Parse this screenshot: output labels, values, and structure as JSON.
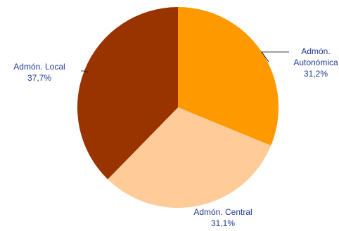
{
  "chart_data": {
    "type": "pie",
    "slices": [
      {
        "label_lines": [
          "Admón.",
          "Autonómica"
        ],
        "value": 31.2,
        "value_label": "31,2%",
        "color": "#FF9900"
      },
      {
        "label_lines": [
          "Admón. Central"
        ],
        "value": 31.1,
        "value_label": "31,1%",
        "color": "#FFCC99"
      },
      {
        "label_lines": [
          "Admón. Local"
        ],
        "value": 37.7,
        "value_label": "37,7%",
        "color": "#993300"
      }
    ],
    "start_angle_deg": 0,
    "direction": "clockwise",
    "label_color": "#1F3A93",
    "legend": "none"
  }
}
